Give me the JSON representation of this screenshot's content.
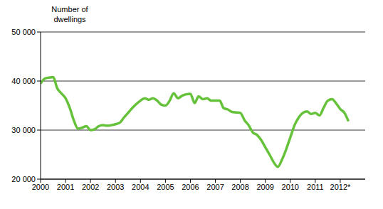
{
  "chart_data": {
    "type": "line",
    "y_label": "Number of dwellings",
    "color": "#66c23a",
    "grid": true,
    "xlim": [
      2000,
      2013
    ],
    "xticks": [
      2000,
      2001,
      2002,
      2003,
      2004,
      2005,
      2006,
      2007,
      2008,
      2009,
      2010,
      2011,
      {
        "value": 2012,
        "label": "2012*"
      }
    ],
    "ylim": [
      20000,
      50000
    ],
    "yticks": [
      {
        "value": 20000,
        "label": "20 000"
      },
      {
        "value": 30000,
        "label": "30 000"
      },
      {
        "value": 40000,
        "label": "40 000"
      },
      {
        "value": 50000,
        "label": "50 000"
      }
    ],
    "x": [
      2000,
      2000.17,
      2000.33,
      2000.5,
      2000.67,
      2000.83,
      2001,
      2001.17,
      2001.33,
      2001.5,
      2001.67,
      2001.83,
      2002,
      2002.17,
      2002.33,
      2002.5,
      2002.67,
      2002.83,
      2003,
      2003.17,
      2003.33,
      2003.5,
      2003.67,
      2003.83,
      2004,
      2004.17,
      2004.33,
      2004.5,
      2004.67,
      2004.83,
      2005,
      2005.17,
      2005.33,
      2005.5,
      2005.67,
      2005.83,
      2006,
      2006.17,
      2006.33,
      2006.5,
      2006.67,
      2006.83,
      2007,
      2007.17,
      2007.33,
      2007.5,
      2007.67,
      2007.83,
      2008,
      2008.17,
      2008.33,
      2008.5,
      2008.67,
      2008.83,
      2009,
      2009.17,
      2009.33,
      2009.5,
      2009.67,
      2009.83,
      2010,
      2010.17,
      2010.33,
      2010.5,
      2010.67,
      2010.83,
      2011,
      2011.17,
      2011.33,
      2011.5,
      2011.67,
      2011.83,
      2012,
      2012.17,
      2012.33
    ],
    "values": [
      39500,
      40500,
      40700,
      40800,
      38500,
      37500,
      36500,
      34500,
      32000,
      30300,
      30500,
      30800,
      30000,
      30200,
      30800,
      31000,
      30900,
      31000,
      31200,
      31500,
      32500,
      33500,
      34500,
      35300,
      36000,
      36500,
      36200,
      36500,
      36000,
      35200,
      35000,
      36000,
      37500,
      36500,
      37000,
      37300,
      37400,
      35500,
      36900,
      36300,
      36500,
      36000,
      36000,
      36000,
      34500,
      34200,
      33700,
      33600,
      33500,
      32000,
      31000,
      29500,
      29000,
      28000,
      26500,
      25000,
      23500,
      22500,
      24000,
      26000,
      28500,
      31000,
      32500,
      33500,
      33800,
      33300,
      33500,
      33000,
      34500,
      36000,
      36300,
      35500,
      34300,
      33500,
      31800
    ]
  }
}
